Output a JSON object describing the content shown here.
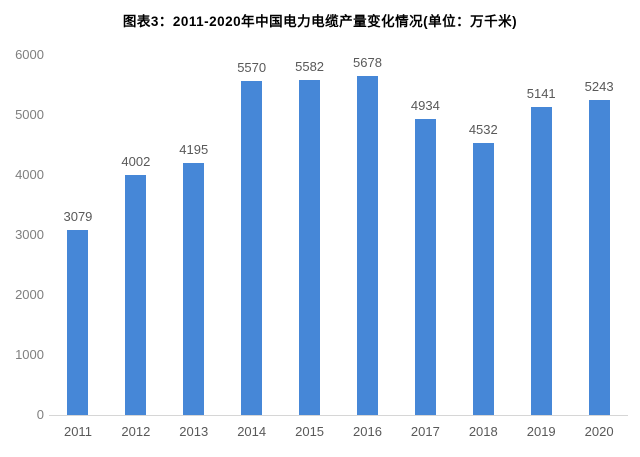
{
  "chart_data": {
    "type": "bar",
    "title": "图表3：2011-2020年中国电力电缆产量变化情况(单位：万千米)",
    "categories": [
      "2011",
      "2012",
      "2013",
      "2014",
      "2015",
      "2016",
      "2017",
      "2018",
      "2019",
      "2020"
    ],
    "values": [
      3079,
      4002,
      4195,
      5570,
      5582,
      5678,
      4934,
      4532,
      5141,
      5243
    ],
    "xlabel": "",
    "ylabel": "",
    "ylim": [
      0,
      6000
    ],
    "yticks": [
      0,
      1000,
      2000,
      3000,
      4000,
      5000,
      6000
    ],
    "grid": "off",
    "legend": "none",
    "data_labels": "above-bars",
    "bar_color": "#4687d7",
    "axis_line_color": "#d6d6d6",
    "tick_label_color": "#7f7f7f",
    "value_label_color": "#595959"
  }
}
